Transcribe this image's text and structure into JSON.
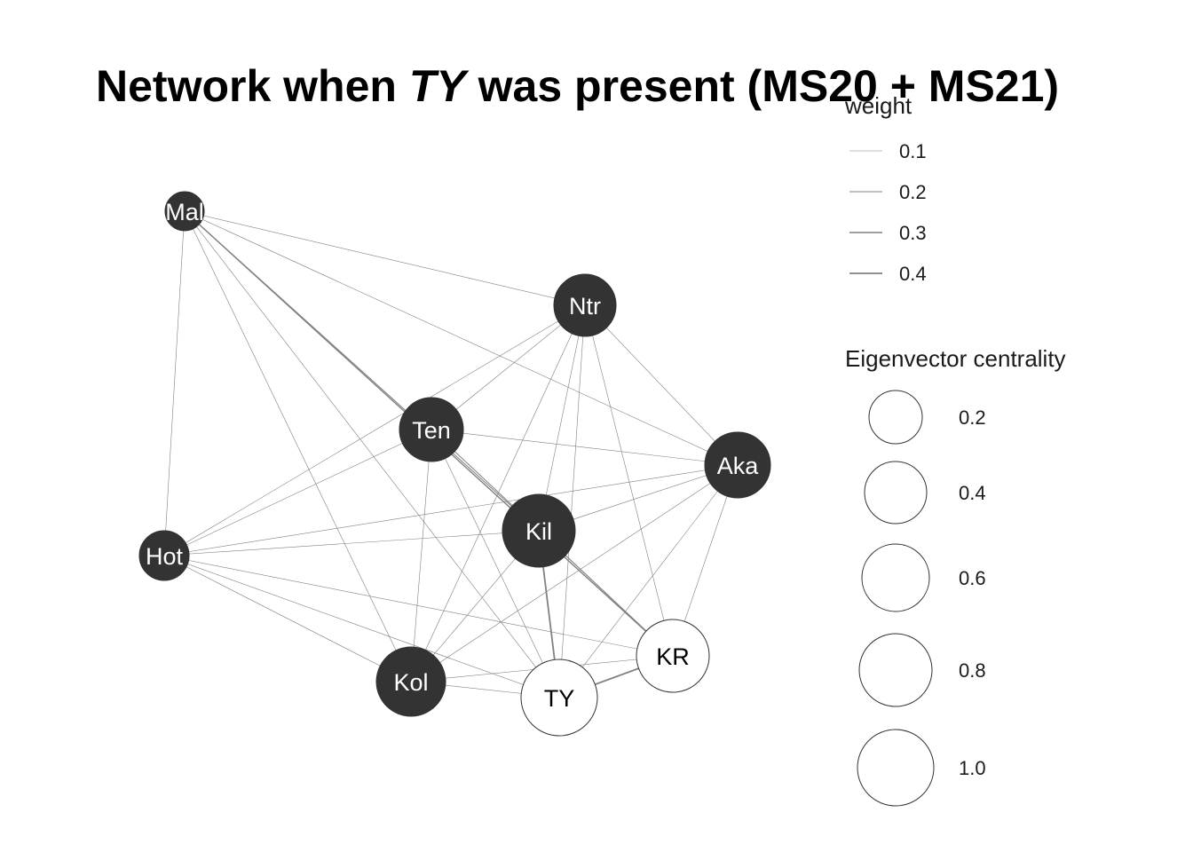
{
  "title": {
    "prefix": "Network when ",
    "italic": "TY",
    "suffix": " was present (MS20 + MS21)"
  },
  "nodes": [
    {
      "id": "Mal",
      "label": "Mal",
      "fill": "dark"
    },
    {
      "id": "Ntr",
      "label": "Ntr",
      "fill": "dark"
    },
    {
      "id": "Ten",
      "label": "Ten",
      "fill": "dark"
    },
    {
      "id": "Aka",
      "label": "Aka",
      "fill": "dark"
    },
    {
      "id": "Kil",
      "label": "Kil",
      "fill": "dark"
    },
    {
      "id": "Hot",
      "label": "Hot",
      "fill": "dark"
    },
    {
      "id": "KR",
      "label": "KR",
      "fill": "white"
    },
    {
      "id": "Kol",
      "label": "Kol",
      "fill": "dark"
    },
    {
      "id": "TY",
      "label": "TY",
      "fill": "white"
    }
  ],
  "edges": [
    {
      "from": "Mal",
      "to": "Ntr",
      "weight": 0.1
    },
    {
      "from": "Mal",
      "to": "Hot",
      "weight": 0.1
    },
    {
      "from": "Mal",
      "to": "Aka",
      "weight": 0.1
    },
    {
      "from": "Mal",
      "to": "Kil",
      "weight": 0.2
    },
    {
      "from": "Mal",
      "to": "KR",
      "weight": 0.3
    },
    {
      "from": "Mal",
      "to": "Kol",
      "weight": 0.1
    },
    {
      "from": "Mal",
      "to": "TY",
      "weight": 0.1
    },
    {
      "from": "Ntr",
      "to": "Ten",
      "weight": 0.1
    },
    {
      "from": "Ntr",
      "to": "Aka",
      "weight": 0.1
    },
    {
      "from": "Ntr",
      "to": "Kil",
      "weight": 0.1
    },
    {
      "from": "Ntr",
      "to": "Hot",
      "weight": 0.1
    },
    {
      "from": "Ntr",
      "to": "KR",
      "weight": 0.1
    },
    {
      "from": "Ntr",
      "to": "Kol",
      "weight": 0.1
    },
    {
      "from": "Ntr",
      "to": "TY",
      "weight": 0.1
    },
    {
      "from": "Ten",
      "to": "Aka",
      "weight": 0.1
    },
    {
      "from": "Ten",
      "to": "Hot",
      "weight": 0.1
    },
    {
      "from": "Ten",
      "to": "Kol",
      "weight": 0.1
    },
    {
      "from": "Ten",
      "to": "TY",
      "weight": 0.1
    },
    {
      "from": "Ten",
      "to": "KR",
      "weight": 0.2
    },
    {
      "from": "Aka",
      "to": "Kil",
      "weight": 0.1
    },
    {
      "from": "Aka",
      "to": "Hot",
      "weight": 0.1
    },
    {
      "from": "Aka",
      "to": "KR",
      "weight": 0.1
    },
    {
      "from": "Aka",
      "to": "Kol",
      "weight": 0.1
    },
    {
      "from": "Aka",
      "to": "TY",
      "weight": 0.1
    },
    {
      "from": "Kil",
      "to": "Hot",
      "weight": 0.1
    },
    {
      "from": "Kil",
      "to": "Kol",
      "weight": 0.1
    },
    {
      "from": "Kil",
      "to": "TY",
      "weight": 0.4
    },
    {
      "from": "Kil",
      "to": "KR",
      "weight": 0.1
    },
    {
      "from": "Hot",
      "to": "Kol",
      "weight": 0.1
    },
    {
      "from": "Hot",
      "to": "TY",
      "weight": 0.1
    },
    {
      "from": "Hot",
      "to": "KR",
      "weight": 0.1
    },
    {
      "from": "Kol",
      "to": "TY",
      "weight": 0.1
    },
    {
      "from": "Kol",
      "to": "KR",
      "weight": 0.1
    },
    {
      "from": "TY",
      "to": "KR",
      "weight": 0.4
    }
  ],
  "legend": {
    "weight": {
      "title": "weight",
      "items": [
        {
          "label": "0.1",
          "value": 0.1
        },
        {
          "label": "0.2",
          "value": 0.2
        },
        {
          "label": "0.3",
          "value": 0.3
        },
        {
          "label": "0.4",
          "value": 0.4
        }
      ]
    },
    "centrality": {
      "title": "Eigenvector centrality",
      "items": [
        {
          "label": "0.2",
          "value": 0.2
        },
        {
          "label": "0.4",
          "value": 0.4
        },
        {
          "label": "0.6",
          "value": 0.6
        },
        {
          "label": "0.8",
          "value": 0.8
        },
        {
          "label": "1.0",
          "value": 1.0
        }
      ]
    }
  },
  "colors": {
    "dark_node": "#333333",
    "white_node": "#ffffff",
    "edge": "#808080",
    "text_dark": "#000000",
    "text_light": "#ffffff"
  }
}
